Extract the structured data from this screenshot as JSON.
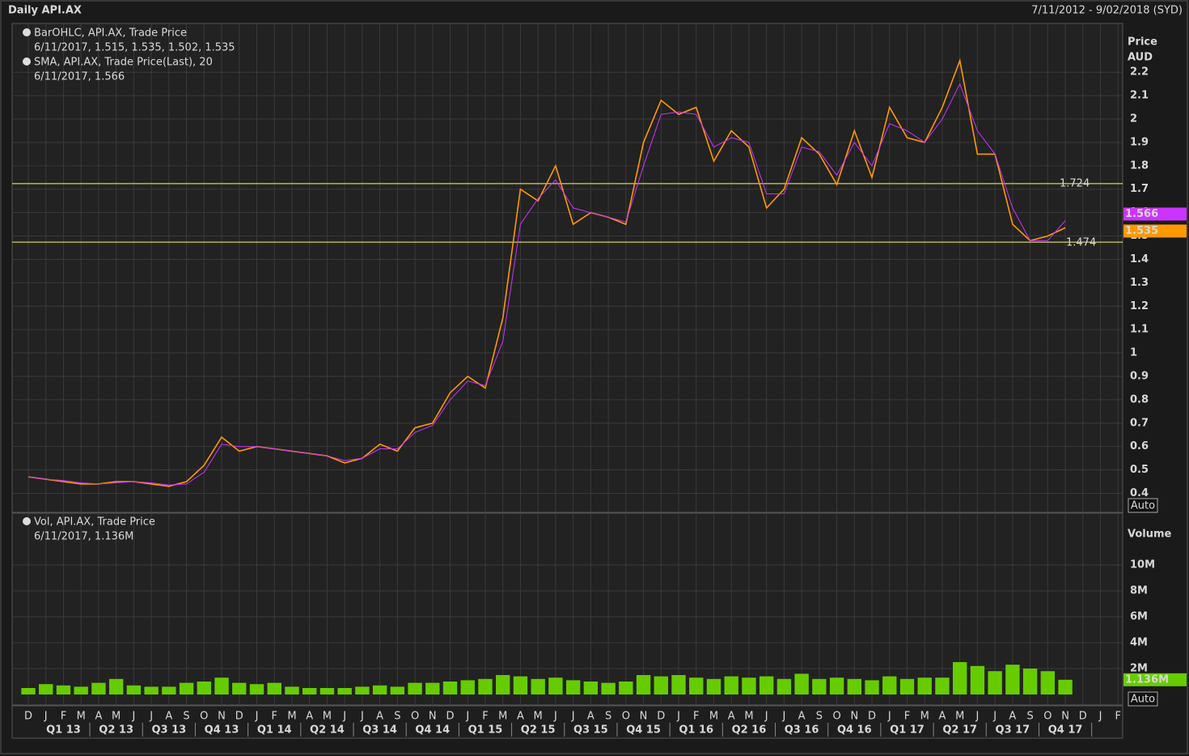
{
  "header": {
    "title": "Daily API.AX",
    "range": "7/11/2012 - 9/02/2018 (SYD)"
  },
  "chart_data": [
    {
      "type": "line",
      "ylabel": "Price",
      "yunit": "AUD",
      "legend": [
        [
          "BarOHLC, API.AX, Trade Price",
          "6/11/2017, 1.515, 1.535, 1.502, 1.535"
        ],
        [
          "SMA, API.AX, Trade Price(Last),  20",
          "6/11/2017, 1.566"
        ]
      ],
      "categories": [
        "D",
        "J",
        "F",
        "M",
        "A",
        "M",
        "J",
        "J",
        "A",
        "S",
        "O",
        "N",
        "D",
        "J",
        "F",
        "M",
        "A",
        "M",
        "J",
        "J",
        "A",
        "S",
        "O",
        "N",
        "D",
        "J",
        "F",
        "M",
        "A",
        "M",
        "J",
        "J",
        "A",
        "S",
        "O",
        "N",
        "D",
        "J",
        "F",
        "M",
        "A",
        "M",
        "J",
        "J",
        "A",
        "S",
        "O",
        "N",
        "D",
        "J",
        "F",
        "M",
        "A",
        "M",
        "J",
        "J",
        "A",
        "S",
        "O",
        "N",
        "D",
        "J",
        "F"
      ],
      "quarters": [
        "Q1 13",
        "Q2 13",
        "Q3 13",
        "Q4 13",
        "Q1 14",
        "Q2 14",
        "Q3 14",
        "Q4 14",
        "Q1 15",
        "Q2 15",
        "Q3 15",
        "Q4 15",
        "Q1 16",
        "Q2 16",
        "Q3 16",
        "Q4 16",
        "Q1 17",
        "Q2 17",
        "Q3 17",
        "Q4 17"
      ],
      "series": [
        {
          "name": "Trade Price",
          "color": "#ff9900",
          "values": [
            0.47,
            0.46,
            0.45,
            0.44,
            0.44,
            0.45,
            0.45,
            0.44,
            0.43,
            0.45,
            0.52,
            0.64,
            0.58,
            0.6,
            0.59,
            0.58,
            0.57,
            0.56,
            0.53,
            0.55,
            0.61,
            0.58,
            0.68,
            0.7,
            0.83,
            0.9,
            0.85,
            1.15,
            1.7,
            1.65,
            1.8,
            1.55,
            1.6,
            1.58,
            1.55,
            1.9,
            2.08,
            2.02,
            2.05,
            1.82,
            1.95,
            1.88,
            1.62,
            1.7,
            1.92,
            1.85,
            1.72,
            1.95,
            1.75,
            2.05,
            1.92,
            1.9,
            2.05,
            2.25,
            1.85,
            1.85,
            1.55,
            1.48,
            1.5,
            1.535,
            null,
            null,
            null
          ]
        },
        {
          "name": "SMA",
          "color": "#cc33ff",
          "values": [
            0.47,
            0.46,
            0.455,
            0.445,
            0.44,
            0.445,
            0.45,
            0.445,
            0.435,
            0.44,
            0.49,
            0.61,
            0.6,
            0.6,
            0.59,
            0.58,
            0.57,
            0.56,
            0.54,
            0.55,
            0.59,
            0.59,
            0.66,
            0.69,
            0.8,
            0.88,
            0.86,
            1.05,
            1.55,
            1.66,
            1.74,
            1.62,
            1.6,
            1.58,
            1.56,
            1.8,
            2.02,
            2.03,
            2.02,
            1.88,
            1.92,
            1.9,
            1.68,
            1.68,
            1.88,
            1.86,
            1.76,
            1.9,
            1.8,
            1.98,
            1.95,
            1.9,
            2.0,
            2.15,
            1.95,
            1.85,
            1.62,
            1.48,
            1.48,
            1.566,
            null,
            null,
            null
          ]
        }
      ],
      "hlines": [
        1.724,
        1.474
      ],
      "hline_color": "#ffff66",
      "ylim": [
        0.322,
        2.405
      ],
      "yticks": [
        0.4,
        0.5,
        0.6,
        0.7,
        0.8,
        0.9,
        1,
        1.1,
        1.2,
        1.3,
        1.4,
        1.5,
        1.6,
        1.7,
        1.8,
        1.9,
        2,
        2.1,
        2.2
      ],
      "grid": true,
      "button": "Auto"
    },
    {
      "type": "bar",
      "ylabel": "Volume",
      "legend": [
        [
          "Vol, API.AX, Trade Price",
          "6/11/2017, 1.136M"
        ]
      ],
      "series": [
        {
          "name": "Vol",
          "color": "#66cc00",
          "values": [
            0.5,
            0.8,
            0.7,
            0.6,
            0.9,
            1.2,
            0.7,
            0.6,
            0.6,
            0.9,
            1.0,
            1.3,
            0.9,
            0.8,
            0.9,
            0.6,
            0.5,
            0.5,
            0.5,
            0.6,
            0.7,
            0.6,
            0.9,
            0.9,
            1.0,
            1.1,
            1.2,
            1.5,
            1.4,
            1.2,
            1.3,
            1.1,
            1.0,
            0.9,
            1.0,
            1.5,
            1.4,
            1.5,
            1.3,
            1.2,
            1.4,
            1.3,
            1.4,
            1.2,
            1.6,
            1.2,
            1.3,
            1.2,
            1.1,
            1.4,
            1.2,
            1.3,
            1.3,
            2.5,
            2.2,
            1.8,
            2.3,
            2.0,
            1.8,
            1.136,
            null,
            null,
            null
          ],
          "value_labels": [
            null,
            null,
            null,
            null,
            null,
            null,
            null,
            null,
            null,
            null,
            null,
            null,
            null,
            null,
            null,
            null,
            null,
            null,
            null,
            null,
            null,
            null,
            null,
            null,
            null,
            null,
            null,
            null,
            null,
            null,
            null,
            null,
            null,
            null,
            null,
            null,
            null,
            null,
            null,
            null,
            null,
            null,
            null,
            null,
            null,
            null,
            null,
            null,
            null,
            null,
            null,
            null,
            null,
            null,
            null,
            null,
            null,
            null,
            null,
            "1.136M",
            null,
            null,
            null
          ]
        }
      ],
      "ylim": [
        -0.75,
        14
      ],
      "yticks": [
        {
          "value": 2,
          "label": "2M"
        },
        {
          "value": 4,
          "label": "4M"
        },
        {
          "value": 6,
          "label": "6M"
        },
        {
          "value": 8,
          "label": "8M"
        },
        {
          "value": 10,
          "label": "10M"
        }
      ],
      "grid": true,
      "button": "Auto"
    }
  ]
}
